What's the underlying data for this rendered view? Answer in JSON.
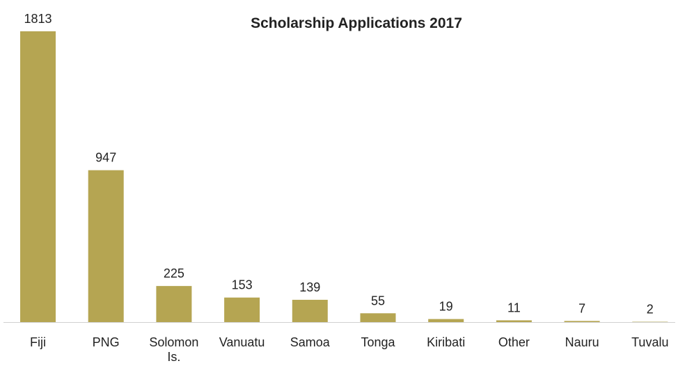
{
  "chart_data": {
    "type": "bar",
    "title": "Scholarship Applications 2017",
    "categories": [
      "Fiji",
      "PNG",
      "Solomon Is.",
      "Vanuatu",
      "Samoa",
      "Tonga",
      "Kiribati",
      "Other",
      "Nauru",
      "Tuvalu"
    ],
    "values": [
      1813,
      947,
      225,
      153,
      139,
      55,
      19,
      11,
      7,
      2
    ],
    "color": "#b5a552"
  }
}
